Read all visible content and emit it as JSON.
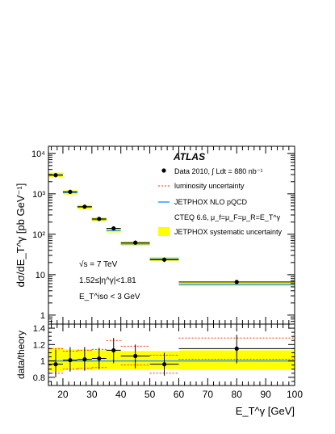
{
  "chart_data": [
    {
      "type": "scatter",
      "panel": "cross-section",
      "experiment_label": "ATLAS",
      "ylabel": "dσ/dE_T^γ [pb GeV⁻¹]",
      "yscale": "log",
      "ylim": [
        0.6,
        15000
      ],
      "xlim": [
        15,
        100
      ],
      "y_ticks": [
        "1",
        "10",
        "10²",
        "10³",
        "10⁴"
      ],
      "legend_placement": "top-right",
      "legend": {
        "data": "Data 2010, ∫ Ldt = 880 nb⁻¹",
        "lumi": "luminosity uncertainty",
        "nlo": "JETPHOX NLO pQCD",
        "cteq": "CTEQ 6.6, μ_f=μ_F=μ_R=E_T^γ",
        "syst": "JETPHOX systematic uncertainty"
      },
      "annotations": {
        "sqrt_s": "√s = 7 TeV",
        "eta": "1.52≤|η^γ|<1.81",
        "iso": "E_T^iso < 3 GeV"
      },
      "bins": [
        {
          "x_low": 15,
          "x_high": 20,
          "x": 17.5,
          "data": 2900,
          "err_low": 2550,
          "err_high": 3300,
          "theory": 2950,
          "theory_low": 2600,
          "theory_high": 3350
        },
        {
          "x_low": 20,
          "x_high": 25,
          "x": 22.5,
          "data": 1120,
          "err_low": 1000,
          "err_high": 1260,
          "theory": 1080,
          "theory_low": 960,
          "theory_high": 1220
        },
        {
          "x_low": 25,
          "x_high": 30,
          "x": 27.5,
          "data": 480,
          "err_low": 430,
          "err_high": 540,
          "theory": 470,
          "theory_low": 420,
          "theory_high": 530
        },
        {
          "x_low": 30,
          "x_high": 35,
          "x": 32.5,
          "data": 240,
          "err_low": 215,
          "err_high": 268,
          "theory": 232,
          "theory_low": 208,
          "theory_high": 262
        },
        {
          "x_low": 35,
          "x_high": 40,
          "x": 37.5,
          "data": 140,
          "err_low": 124,
          "err_high": 158,
          "theory": 124,
          "theory_low": 111,
          "theory_high": 140
        },
        {
          "x_low": 40,
          "x_high": 50,
          "x": 45,
          "data": 62,
          "err_low": 55,
          "err_high": 70,
          "theory": 58,
          "theory_low": 52,
          "theory_high": 65
        },
        {
          "x_low": 50,
          "x_high": 60,
          "x": 55,
          "data": 23.5,
          "err_low": 20.5,
          "err_high": 26.5,
          "theory": 24.5,
          "theory_low": 22,
          "theory_high": 27.5
        },
        {
          "x_low": 60,
          "x_high": 100,
          "x": 80,
          "data": 6.6,
          "err_low": 5.8,
          "err_high": 7.4,
          "theory": 5.8,
          "theory_low": 5.2,
          "theory_high": 6.5
        }
      ]
    },
    {
      "type": "scatter",
      "panel": "ratio",
      "xlabel": "E_T^γ [GeV]",
      "ylabel": "data/theory",
      "xlim": [
        15,
        100
      ],
      "ylim": [
        0.7,
        1.45
      ],
      "x_ticks": [
        20,
        30,
        40,
        50,
        60,
        70,
        80,
        90,
        100
      ],
      "y_ticks": [
        "0.8",
        "1",
        "1.2",
        "1.4"
      ],
      "bins": [
        {
          "x_low": 15,
          "x_high": 20,
          "x": 17.5,
          "ratio": 0.96,
          "err_low": 0.8,
          "err_high": 1.14,
          "lumi_low": 0.85,
          "lumi_high": 1.15,
          "syst_low": 0.87,
          "syst_high": 1.16
        },
        {
          "x_low": 20,
          "x_high": 25,
          "x": 22.5,
          "ratio": 1.01,
          "err_low": 0.87,
          "err_high": 1.17,
          "lumi_low": 0.9,
          "lumi_high": 1.12,
          "syst_low": 0.89,
          "syst_high": 1.14
        },
        {
          "x_low": 25,
          "x_high": 30,
          "x": 27.5,
          "ratio": 1.02,
          "err_low": 0.88,
          "err_high": 1.17,
          "lumi_low": 0.91,
          "lumi_high": 1.13,
          "syst_low": 0.89,
          "syst_high": 1.14
        },
        {
          "x_low": 30,
          "x_high": 35,
          "x": 32.5,
          "ratio": 1.03,
          "err_low": 0.9,
          "err_high": 1.16,
          "lumi_low": 0.92,
          "lumi_high": 1.14,
          "syst_low": 0.89,
          "syst_high": 1.13
        },
        {
          "x_low": 35,
          "x_high": 40,
          "x": 37.5,
          "ratio": 1.13,
          "err_low": 0.97,
          "err_high": 1.28,
          "lumi_low": 1.0,
          "lumi_high": 1.25,
          "syst_low": 0.89,
          "syst_high": 1.13
        },
        {
          "x_low": 40,
          "x_high": 50,
          "x": 45,
          "ratio": 1.06,
          "err_low": 0.91,
          "err_high": 1.2,
          "lumi_low": 0.95,
          "lumi_high": 1.18,
          "syst_low": 0.89,
          "syst_high": 1.12
        },
        {
          "x_low": 50,
          "x_high": 60,
          "x": 55,
          "ratio": 0.96,
          "err_low": 0.82,
          "err_high": 1.1,
          "lumi_low": 0.85,
          "lumi_high": 1.07,
          "syst_low": 0.9,
          "syst_high": 1.12
        },
        {
          "x_low": 60,
          "x_high": 100,
          "x": 80,
          "ratio": 1.15,
          "err_low": 0.97,
          "err_high": 1.32,
          "lumi_low": 1.02,
          "lumi_high": 1.28,
          "syst_low": 0.89,
          "syst_high": 1.13
        }
      ]
    }
  ],
  "colors": {
    "syst_band": "#ffff00",
    "nlo_line": "#3399ff",
    "lumi_line": "#ff3300",
    "data": "#000000"
  }
}
